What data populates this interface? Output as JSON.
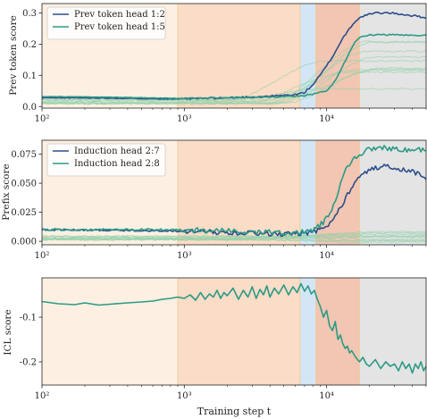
{
  "colors": {
    "dark_blue": "#2c4f8c",
    "teal": "#2a9a86",
    "faint_green": "#8fd0a8",
    "phase_1": "#fdf0e2",
    "phase_2": "#fbdcc6",
    "phase_3": "#d4e6f6",
    "phase_4": "#f2c6b2",
    "phase_5": "#e4e4e4",
    "boundary_line": "#f4c27a"
  },
  "chart_data": {
    "shared_x": {
      "label": "Training step t",
      "scale": "log",
      "xlim": [
        100,
        50000
      ],
      "ticks": [
        {
          "value": 100,
          "label": "10²"
        },
        {
          "value": 1000,
          "label": "10³"
        },
        {
          "value": 10000,
          "label": "10⁴"
        }
      ]
    },
    "phase_boundaries": [
      900,
      6500,
      8400,
      17000
    ],
    "panels": [
      {
        "type": "line",
        "ylabel": "Prev token score",
        "ylim": [
          -0.005,
          0.33
        ],
        "yticks": [
          0.0,
          0.1,
          0.2,
          0.3
        ],
        "yfmt": "1",
        "legend_position": "top-left",
        "series": [
          {
            "name": "Prev token head 1:2",
            "color": "dark_blue",
            "noise": 0.003,
            "points": [
              [
                100,
                0.028
              ],
              [
                300,
                0.027
              ],
              [
                900,
                0.024
              ],
              [
                2000,
                0.028
              ],
              [
                4000,
                0.033
              ],
              [
                6000,
                0.038
              ],
              [
                7000,
                0.045
              ],
              [
                8000,
                0.07
              ],
              [
                9000,
                0.1
              ],
              [
                10000,
                0.13
              ],
              [
                11000,
                0.16
              ],
              [
                12000,
                0.19
              ],
              [
                13000,
                0.22
              ],
              [
                14000,
                0.24
              ],
              [
                15000,
                0.26
              ],
              [
                16000,
                0.275
              ],
              [
                18000,
                0.29
              ],
              [
                22000,
                0.3
              ],
              [
                28000,
                0.3
              ],
              [
                35000,
                0.295
              ],
              [
                42000,
                0.29
              ],
              [
                50000,
                0.285
              ]
            ]
          },
          {
            "name": "Prev token head 1:5",
            "color": "teal",
            "noise": 0.002,
            "points": [
              [
                100,
                0.032
              ],
              [
                300,
                0.03
              ],
              [
                900,
                0.026
              ],
              [
                2000,
                0.028
              ],
              [
                4000,
                0.03
              ],
              [
                6000,
                0.032
              ],
              [
                7000,
                0.035
              ],
              [
                8000,
                0.04
              ],
              [
                10000,
                0.05
              ],
              [
                11000,
                0.07
              ],
              [
                12000,
                0.1
              ],
              [
                13000,
                0.13
              ],
              [
                14000,
                0.16
              ],
              [
                15000,
                0.19
              ],
              [
                16000,
                0.21
              ],
              [
                17000,
                0.22
              ],
              [
                20000,
                0.23
              ],
              [
                30000,
                0.23
              ],
              [
                50000,
                0.228
              ]
            ]
          }
        ],
        "background_series_count": 10
      },
      {
        "type": "line",
        "ylabel": "Prefix score",
        "ylim": [
          -0.003,
          0.087
        ],
        "yticks": [
          0.0,
          0.025,
          0.05,
          0.075
        ],
        "yfmt": "3",
        "legend_position": "top-left",
        "series": [
          {
            "name": "Induction head 2:7",
            "color": "dark_blue",
            "noise": 0.002,
            "points": [
              [
                100,
                0.01
              ],
              [
                900,
                0.009
              ],
              [
                1500,
                0.008
              ],
              [
                3000,
                0.007
              ],
              [
                5000,
                0.006
              ],
              [
                7000,
                0.007
              ],
              [
                8000,
                0.008
              ],
              [
                9000,
                0.01
              ],
              [
                10000,
                0.013
              ],
              [
                11000,
                0.018
              ],
              [
                12000,
                0.025
              ],
              [
                13000,
                0.033
              ],
              [
                14000,
                0.04
              ],
              [
                15000,
                0.047
              ],
              [
                17000,
                0.055
              ],
              [
                20000,
                0.062
              ],
              [
                25000,
                0.065
              ],
              [
                30000,
                0.063
              ],
              [
                40000,
                0.06
              ],
              [
                50000,
                0.055
              ]
            ]
          },
          {
            "name": "Induction head 2:8",
            "color": "teal",
            "noise": 0.0025,
            "points": [
              [
                100,
                0.01
              ],
              [
                900,
                0.01
              ],
              [
                1500,
                0.009
              ],
              [
                3000,
                0.008
              ],
              [
                5000,
                0.007
              ],
              [
                7000,
                0.008
              ],
              [
                8000,
                0.01
              ],
              [
                9000,
                0.014
              ],
              [
                10000,
                0.02
              ],
              [
                11000,
                0.03
              ],
              [
                12000,
                0.042
              ],
              [
                13000,
                0.055
              ],
              [
                14000,
                0.064
              ],
              [
                15000,
                0.07
              ],
              [
                17000,
                0.075
              ],
              [
                20000,
                0.079
              ],
              [
                25000,
                0.08
              ],
              [
                30000,
                0.08
              ],
              [
                40000,
                0.079
              ],
              [
                50000,
                0.078
              ]
            ]
          }
        ],
        "background_series_count": 10
      },
      {
        "type": "line",
        "ylabel": "ICL score",
        "ylim": [
          -0.252,
          -0.012
        ],
        "yticks": [
          -0.1,
          -0.2
        ],
        "yfmt": "1",
        "series": [
          {
            "color": "teal",
            "noise": 0.0,
            "points": [
              [
                100,
                -0.065
              ],
              [
                130,
                -0.07
              ],
              [
                170,
                -0.072
              ],
              [
                200,
                -0.068
              ],
              [
                250,
                -0.073
              ],
              [
                300,
                -0.071
              ],
              [
                400,
                -0.068
              ],
              [
                500,
                -0.066
              ],
              [
                600,
                -0.064
              ],
              [
                700,
                -0.06
              ],
              [
                800,
                -0.058
              ],
              [
                900,
                -0.055
              ],
              [
                1000,
                -0.058
              ],
              [
                1100,
                -0.05
              ],
              [
                1200,
                -0.062
              ],
              [
                1300,
                -0.045
              ],
              [
                1400,
                -0.06
              ],
              [
                1500,
                -0.048
              ],
              [
                1600,
                -0.055
              ],
              [
                1700,
                -0.04
              ],
              [
                1800,
                -0.058
              ],
              [
                1900,
                -0.045
              ],
              [
                2000,
                -0.052
              ],
              [
                2200,
                -0.035
              ],
              [
                2400,
                -0.06
              ],
              [
                2600,
                -0.04
              ],
              [
                2800,
                -0.055
              ],
              [
                3000,
                -0.032
              ],
              [
                3200,
                -0.058
              ],
              [
                3400,
                -0.038
              ],
              [
                3600,
                -0.05
              ],
              [
                3800,
                -0.03
              ],
              [
                4000,
                -0.055
              ],
              [
                4300,
                -0.035
              ],
              [
                4600,
                -0.048
              ],
              [
                5000,
                -0.028
              ],
              [
                5400,
                -0.05
              ],
              [
                5800,
                -0.032
              ],
              [
                6200,
                -0.045
              ],
              [
                6600,
                -0.025
              ],
              [
                7000,
                -0.042
              ],
              [
                7400,
                -0.03
              ],
              [
                7800,
                -0.048
              ],
              [
                8200,
                -0.04
              ],
              [
                8600,
                -0.06
              ],
              [
                9000,
                -0.075
              ],
              [
                9500,
                -0.1
              ],
              [
                10000,
                -0.085
              ],
              [
                10500,
                -0.12
              ],
              [
                11000,
                -0.13
              ],
              [
                11500,
                -0.11
              ],
              [
                12000,
                -0.15
              ],
              [
                12500,
                -0.14
              ],
              [
                13000,
                -0.16
              ],
              [
                13500,
                -0.17
              ],
              [
                14000,
                -0.165
              ],
              [
                14500,
                -0.18
              ],
              [
                15000,
                -0.175
              ],
              [
                16000,
                -0.19
              ],
              [
                17000,
                -0.2
              ],
              [
                18000,
                -0.19
              ],
              [
                19000,
                -0.205
              ],
              [
                20000,
                -0.21
              ],
              [
                22000,
                -0.195
              ],
              [
                24000,
                -0.215
              ],
              [
                26000,
                -0.2
              ],
              [
                28000,
                -0.21
              ],
              [
                30000,
                -0.205
              ],
              [
                32000,
                -0.22
              ],
              [
                34000,
                -0.2
              ],
              [
                36000,
                -0.215
              ],
              [
                38000,
                -0.205
              ],
              [
                40000,
                -0.225
              ],
              [
                42000,
                -0.205
              ],
              [
                44000,
                -0.215
              ],
              [
                46000,
                -0.2
              ],
              [
                48000,
                -0.22
              ],
              [
                50000,
                -0.21
              ]
            ]
          }
        ]
      }
    ]
  }
}
